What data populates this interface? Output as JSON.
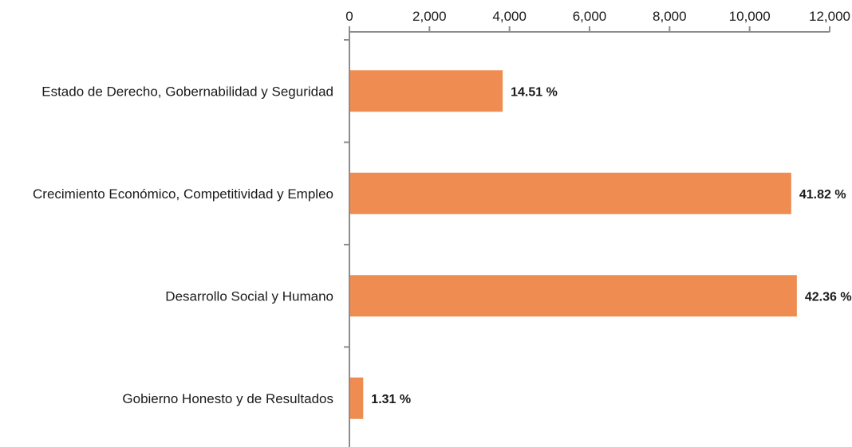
{
  "chart_data": {
    "type": "bar",
    "orientation": "horizontal",
    "title": "",
    "xlabel": "",
    "ylabel": "",
    "xlim": [
      0,
      12000
    ],
    "x_ticks": [
      0,
      2000,
      4000,
      6000,
      8000,
      10000,
      12000
    ],
    "x_tick_labels": [
      "0",
      "2,000",
      "4,000",
      "6,000",
      "8,000",
      "10,000",
      "12,000"
    ],
    "x_axis_position": "top",
    "grid": false,
    "legend": "none",
    "categories": [
      "Estado de Derecho, Gobernabilidad y Seguridad",
      "Crecimiento Económico, Competitividad y Empleo",
      "Desarrollo Social y Humano",
      "Gobierno Honesto y de Resultados"
    ],
    "values": [
      3830,
      11040,
      11180,
      345
    ],
    "data_labels": [
      "14.51 %",
      "41.82 %",
      "42.36 %",
      "1.31 %"
    ],
    "colors": {
      "bar": "#ef8c51",
      "axis": "#8c8c8c",
      "text": "#1a1a1a"
    }
  }
}
